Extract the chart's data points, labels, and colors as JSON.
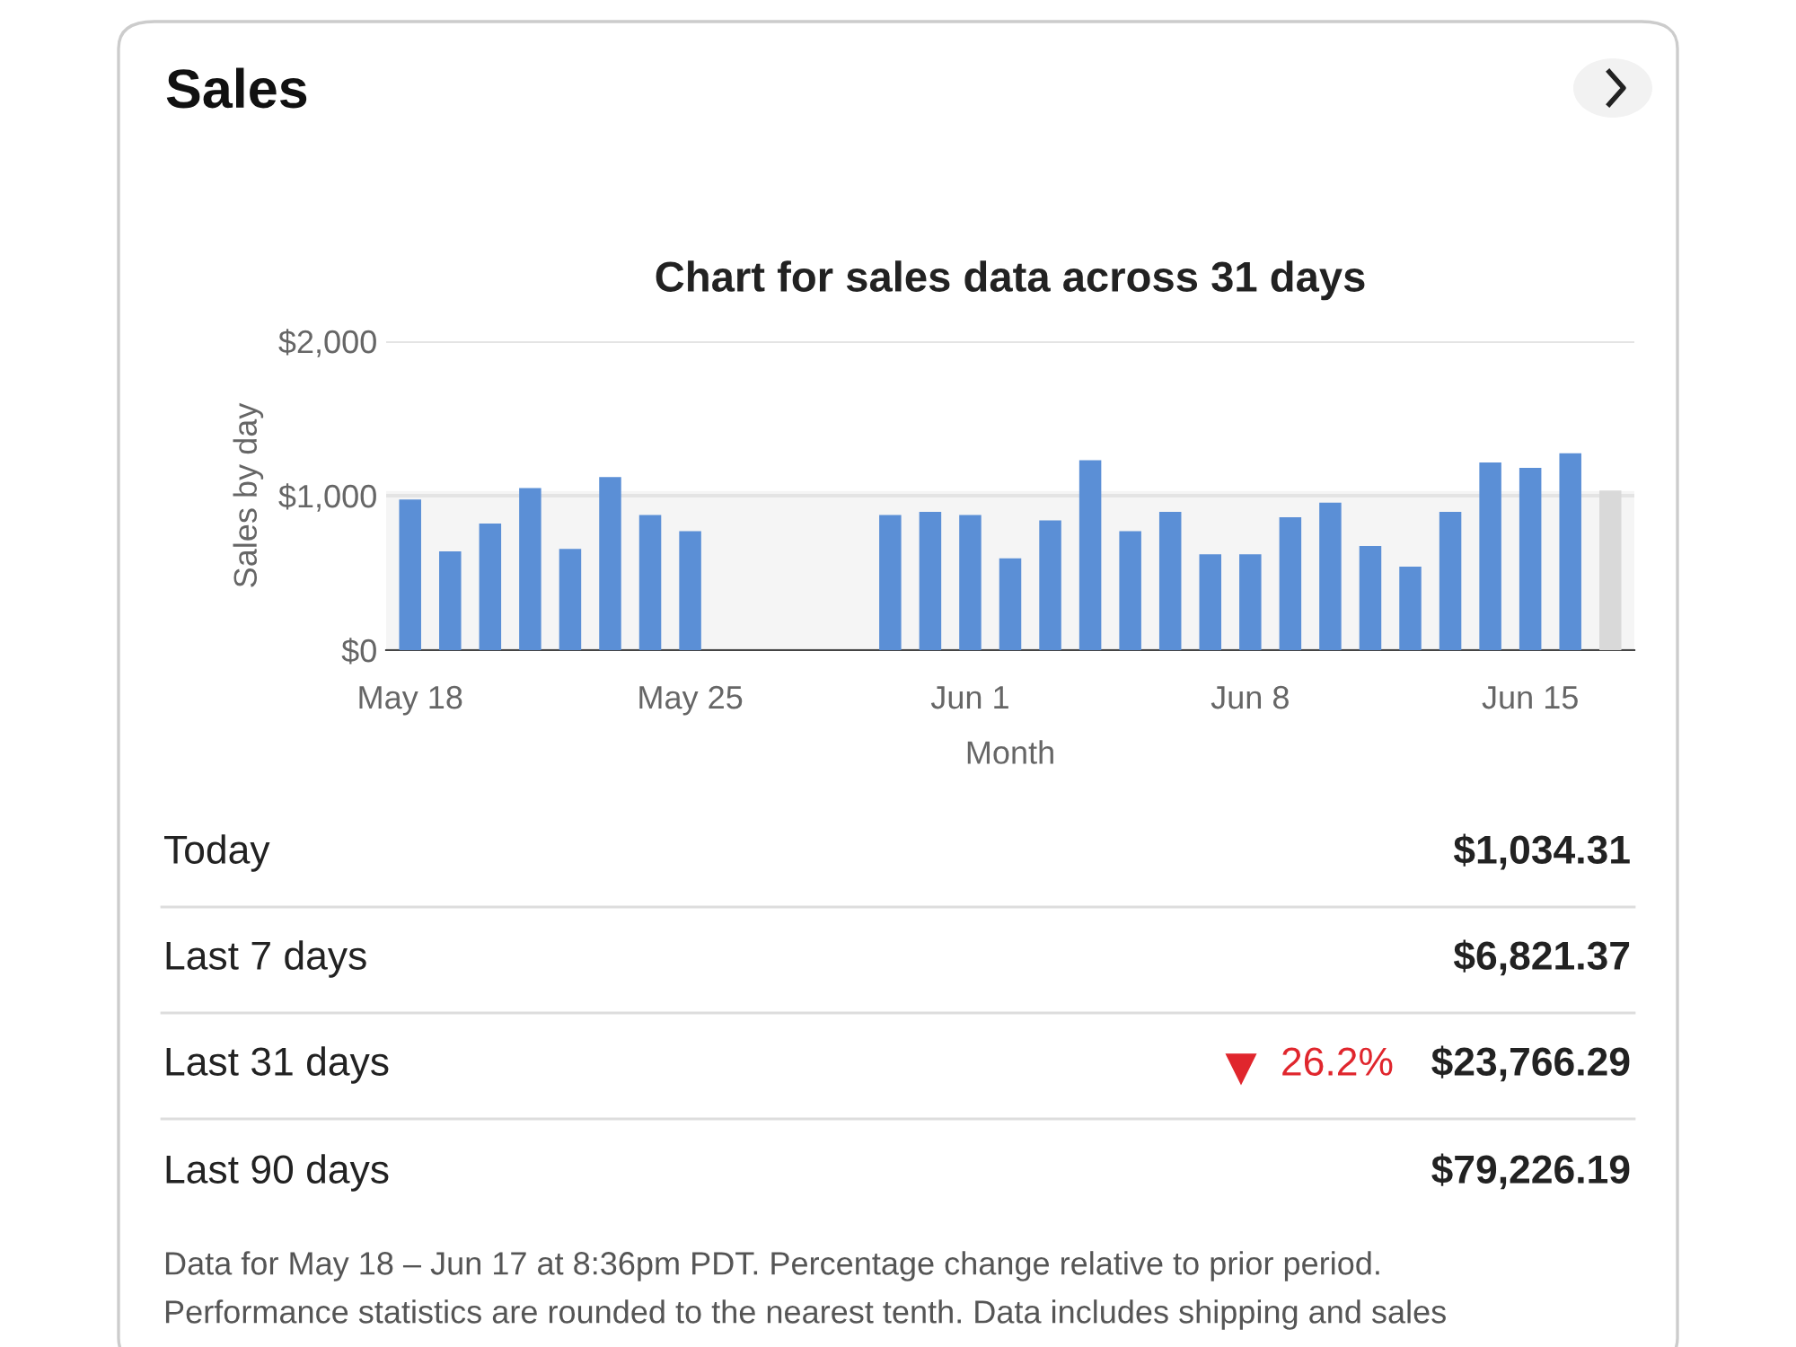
{
  "chart_data": {
    "type": "bar",
    "title": "Chart for sales data across 31 days",
    "xlabel": "Month",
    "ylabel": "Sales by day",
    "categories": [
      "May 18",
      null,
      null,
      null,
      null,
      null,
      null,
      "May 25",
      null,
      null,
      null,
      null,
      null,
      null,
      "Jun 1",
      null,
      null,
      null,
      null,
      null,
      null,
      "Jun 8",
      null,
      null,
      null,
      null,
      null,
      null,
      "Jun 15",
      null,
      null
    ],
    "values": [
      975,
      640,
      820,
      1050,
      655,
      1120,
      875,
      770,
      null,
      null,
      null,
      null,
      875,
      895,
      875,
      595,
      840,
      1230,
      770,
      895,
      620,
      620,
      860,
      955,
      675,
      540,
      895,
      1215,
      1180,
      1275,
      1034
    ],
    "colors": [
      "#5b8fd6",
      "#5b8fd6",
      "#5b8fd6",
      "#5b8fd6",
      "#5b8fd6",
      "#5b8fd6",
      "#5b8fd6",
      "#5b8fd6",
      "#5b8fd6",
      "#5b8fd6",
      "#5b8fd6",
      "#5b8fd6",
      "#5b8fd6",
      "#5b8fd6",
      "#5b8fd6",
      "#5b8fd6",
      "#5b8fd6",
      "#5b8fd6",
      "#5b8fd6",
      "#5b8fd6",
      "#5b8fd6",
      "#5b8fd6",
      "#5b8fd6",
      "#5b8fd6",
      "#5b8fd6",
      "#5b8fd6",
      "#5b8fd6",
      "#5b8fd6",
      "#5b8fd6",
      "#5b8fd6",
      "#d9d9d9"
    ],
    "ylim": [
      0,
      2000
    ],
    "yticks": [
      {
        "value": 0,
        "label": "$0"
      },
      {
        "value": 1000,
        "label": "$1,000"
      },
      {
        "value": 2000,
        "label": "$2,000"
      }
    ],
    "grid": "y",
    "bands": [
      {
        "axis": "y",
        "from": 0,
        "to": 1030,
        "color": "#f5f5f5"
      }
    ],
    "annotations": [
      "Sales",
      "Today",
      "$1,034.31",
      "Last 7 days",
      "$6,821.37",
      "Last 31 days",
      "26.2%",
      "$23,766.29",
      "Last 90 days",
      "$79,226.19",
      "Data for May 18 – Jun 17 at 8:36pm PDT. Percentage change relative to prior period.",
      "Performance statistics are rounded to the nearest tenth. Data includes shipping and sales"
    ]
  }
}
